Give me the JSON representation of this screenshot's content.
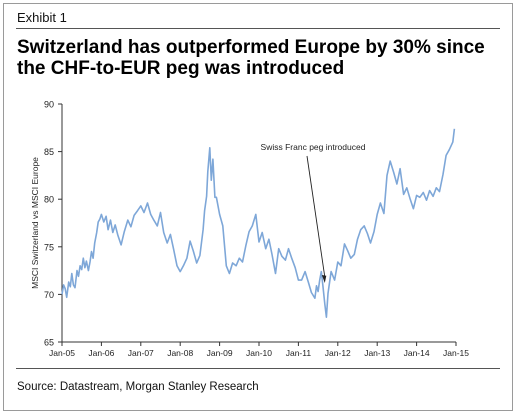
{
  "exhibit_label": "Exhibit 1",
  "title": "Switzerland has outperformed Europe by 30% since the CHF-to-EUR peg was introduced",
  "source": "Source: Datastream, Morgan Stanley Research",
  "chart_data": {
    "type": "line",
    "ylabel": "MSCI Switzerland vs MSCI Europe",
    "xlabel": "",
    "ylim": [
      65,
      90
    ],
    "yticks": [
      65,
      70,
      75,
      80,
      85,
      90
    ],
    "xlim": [
      2005.0,
      2015.0
    ],
    "xtick_labels": [
      "Jan-05",
      "Jan-06",
      "Jan-07",
      "Jan-08",
      "Jan-09",
      "Jan-10",
      "Jan-11",
      "Jan-12",
      "Jan-13",
      "Jan-14",
      "Jan-15"
    ],
    "grid": false,
    "line_color": "#7ea7d8",
    "series": [
      {
        "x": [
          2005.0,
          2005.04,
          2005.08,
          2005.12,
          2005.17,
          2005.21,
          2005.25,
          2005.29,
          2005.33,
          2005.38,
          2005.42,
          2005.46,
          2005.5,
          2005.54,
          2005.58,
          2005.62,
          2005.67,
          2005.71,
          2005.75,
          2005.79,
          2005.83,
          2005.88,
          2005.92,
          2005.96,
          2006.0,
          2006.06,
          2006.12,
          2006.17,
          2006.23,
          2006.29,
          2006.35,
          2006.42,
          2006.5,
          2006.58,
          2006.67,
          2006.75,
          2006.83,
          2006.92,
          2007.0,
          2007.08,
          2007.17,
          2007.25,
          2007.33,
          2007.42,
          2007.5,
          2007.58,
          2007.67,
          2007.75,
          2007.83,
          2007.92,
          2008.0,
          2008.08,
          2008.17,
          2008.25,
          2008.33,
          2008.42,
          2008.5,
          2008.58,
          2008.62,
          2008.67,
          2008.7,
          2008.75,
          2008.79,
          2008.83,
          2008.88,
          2008.92,
          2009.0,
          2009.08,
          2009.17,
          2009.25,
          2009.33,
          2009.42,
          2009.5,
          2009.58,
          2009.67,
          2009.75,
          2009.83,
          2009.92,
          2010.0,
          2010.08,
          2010.17,
          2010.25,
          2010.33,
          2010.42,
          2010.5,
          2010.58,
          2010.67,
          2010.75,
          2010.83,
          2010.92,
          2011.0,
          2011.08,
          2011.17,
          2011.25,
          2011.33,
          2011.42,
          2011.46,
          2011.5,
          2011.54,
          2011.58,
          2011.62,
          2011.67,
          2011.71,
          2011.75,
          2011.83,
          2011.92,
          2012.0,
          2012.08,
          2012.17,
          2012.25,
          2012.33,
          2012.42,
          2012.5,
          2012.58,
          2012.67,
          2012.75,
          2012.83,
          2012.92,
          2013.0,
          2013.08,
          2013.17,
          2013.25,
          2013.33,
          2013.42,
          2013.5,
          2013.58,
          2013.67,
          2013.75,
          2013.83,
          2013.92,
          2014.0,
          2014.08,
          2014.17,
          2014.25,
          2014.33,
          2014.42,
          2014.5,
          2014.58,
          2014.67,
          2014.75,
          2014.83,
          2014.92,
          2014.96
        ],
        "y": [
          70.0,
          71.0,
          70.6,
          69.7,
          71.3,
          70.8,
          72.2,
          71.0,
          70.7,
          72.5,
          71.9,
          73.0,
          72.6,
          73.8,
          72.8,
          73.5,
          72.5,
          73.4,
          74.5,
          73.8,
          75.4,
          76.5,
          77.6,
          77.9,
          78.4,
          77.6,
          78.2,
          76.8,
          77.8,
          76.5,
          77.3,
          76.2,
          75.2,
          76.6,
          77.8,
          77.1,
          78.3,
          78.8,
          79.3,
          78.6,
          79.6,
          78.4,
          77.8,
          77.2,
          78.6,
          76.5,
          75.4,
          76.3,
          74.8,
          73.0,
          72.4,
          73.0,
          73.8,
          75.6,
          74.6,
          73.3,
          74.1,
          76.8,
          78.8,
          80.3,
          82.9,
          85.4,
          82.0,
          84.2,
          80.2,
          80.2,
          78.4,
          77.2,
          73.0,
          72.2,
          73.3,
          73.0,
          73.8,
          73.4,
          75.2,
          76.6,
          77.2,
          78.4,
          75.5,
          76.5,
          74.8,
          75.8,
          74.2,
          72.2,
          74.8,
          74.0,
          73.6,
          74.8,
          73.8,
          72.8,
          71.5,
          71.5,
          72.4,
          71.3,
          70.2,
          69.6,
          70.9,
          70.3,
          71.5,
          72.4,
          71.0,
          69.0,
          67.6,
          70.1,
          72.4,
          71.5,
          73.4,
          73.0,
          75.3,
          74.6,
          73.8,
          74.2,
          75.8,
          76.8,
          77.2,
          76.4,
          75.4,
          76.6,
          78.4,
          79.6,
          78.5,
          82.5,
          84.0,
          82.8,
          81.6,
          83.2,
          80.5,
          81.2,
          80.1,
          79.0,
          80.4,
          80.2,
          80.7,
          79.9,
          80.9,
          80.3,
          81.2,
          80.8,
          82.6,
          84.6,
          85.2,
          86.0,
          87.4
        ]
      }
    ],
    "annotation": {
      "text": "Swiss Franc peg introduced",
      "x": 2011.67,
      "y": 71.2
    }
  }
}
